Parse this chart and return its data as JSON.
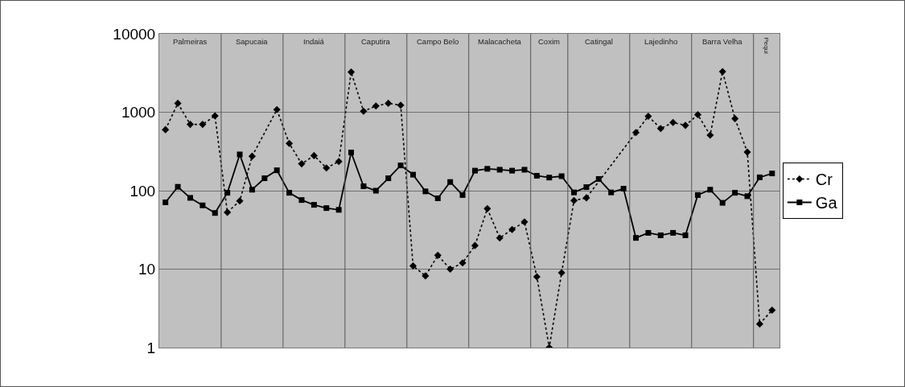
{
  "chart_data": {
    "type": "line",
    "categories": [
      null,
      null,
      null,
      null,
      null,
      null,
      null,
      null,
      null,
      null,
      null,
      null,
      null,
      null,
      null,
      null,
      null,
      null,
      null,
      null,
      null,
      null,
      null,
      null,
      null,
      null,
      null,
      null,
      null,
      null,
      null,
      null,
      null,
      null,
      null,
      null,
      null,
      null,
      null,
      null,
      null,
      null,
      null,
      null,
      null,
      null,
      null,
      null,
      null,
      null
    ],
    "series": [
      {
        "name": "Cr",
        "color": "#000000",
        "marker": "diamond",
        "line_style": "dotted",
        "values": [
          600,
          1300,
          700,
          700,
          900,
          53,
          74,
          275,
          null,
          1080,
          400,
          220,
          280,
          195,
          235,
          3250,
          1030,
          1200,
          1300,
          1230,
          11,
          8.2,
          15,
          10,
          12,
          20,
          59,
          25,
          32,
          40,
          8,
          1,
          9,
          75,
          81,
          null,
          null,
          null,
          550,
          890,
          620,
          740,
          680,
          930,
          510,
          3300,
          830,
          310,
          2,
          3
        ]
      },
      {
        "name": "Ga",
        "color": "#000000",
        "marker": "square",
        "line_style": "solid",
        "values": [
          71,
          112,
          81,
          65,
          52,
          94,
          290,
          103,
          144,
          182,
          94,
          76,
          66,
          60,
          57,
          307,
          114,
          100,
          144,
          210,
          160,
          98,
          80,
          129,
          88,
          180,
          190,
          185,
          180,
          185,
          155,
          147,
          153,
          95,
          111,
          141,
          95,
          106,
          25,
          29,
          27,
          29,
          27,
          88,
          103,
          70,
          94,
          85,
          148,
          166
        ]
      }
    ],
    "log": true,
    "ylim": [
      1,
      10000
    ],
    "yticks": [
      1,
      10,
      100,
      1000,
      10000
    ],
    "grid": "y",
    "legend": "right",
    "annotations": [
      "Palmeiras",
      "Sapucaia",
      "Indaiá",
      "Caputira",
      "Campo Belo",
      "Malacacheta",
      "Coxim",
      "Catingal",
      "Lajedinho",
      "Barra Velha",
      "Pequi"
    ]
  }
}
